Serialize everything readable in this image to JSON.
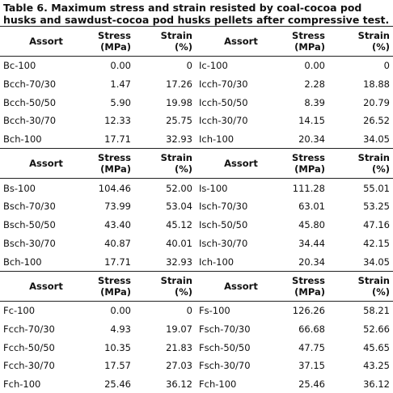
{
  "title": "Table 6. Maximum stress and strain resisted by coal-cocoa pod husks and sawdust-cocoa pod husks pellets after compressive test.",
  "table": {
    "blocks": [
      {
        "header": [
          "Assort",
          "Stress\n(MPa)",
          "Strain\n(%)",
          "Assort",
          "Stress\n(MPa)",
          "Strain\n(%)"
        ],
        "rows": [
          [
            "Bc-100",
            "0.00",
            "0",
            "Ic-100",
            "0.00",
            "0"
          ],
          [
            "Bcch-70/30",
            "1.47",
            "17.26",
            "Icch-70/30",
            "2.28",
            "18.88"
          ],
          [
            "Bcch-50/50",
            "5.90",
            "19.98",
            "Icch-50/50",
            "8.39",
            "20.79"
          ],
          [
            "Bcch-30/70",
            "12.33",
            "25.75",
            "Icch-30/70",
            "14.15",
            "26.52"
          ],
          [
            "Bch-100",
            "17.71",
            "32.93",
            "Ich-100",
            "20.34",
            "34.05"
          ]
        ]
      },
      {
        "header": [
          "Assort",
          "Stress\n(MPa)",
          "Strain\n(%)",
          "Assort",
          "Stress\n(MPa)",
          "Strain\n(%)"
        ],
        "rows": [
          [
            "Bs-100",
            "104.46",
            "52.00",
            "Is-100",
            "111.28",
            "55.01"
          ],
          [
            "Bsch-70/30",
            "73.99",
            "53.04",
            "Isch-70/30",
            "63.01",
            "53.25"
          ],
          [
            "Bsch-50/50",
            "43.40",
            "45.12",
            "Isch-50/50",
            "45.80",
            "47.16"
          ],
          [
            "Bsch-30/70",
            "40.87",
            "40.01",
            "Isch-30/70",
            "34.44",
            "42.15"
          ],
          [
            "Bch-100",
            "17.71",
            "32.93",
            "Ich-100",
            "20.34",
            "34.05"
          ]
        ]
      },
      {
        "header": [
          "Assort",
          "Stress\n(MPa)",
          "Strain\n(%)",
          "Assort",
          "Stress\n(MPa)",
          "Strain\n(%)"
        ],
        "rows": [
          [
            "Fc-100",
            "0.00",
            "0",
            "Fs-100",
            "126.26",
            "58.21"
          ],
          [
            "Fcch-70/30",
            "4.93",
            "19.07",
            "Fsch-70/30",
            "66.68",
            "52.66"
          ],
          [
            "Fcch-50/50",
            "10.35",
            "21.83",
            "Fsch-50/50",
            "47.75",
            "45.65"
          ],
          [
            "Fcch-30/70",
            "17.57",
            "27.03",
            "Fsch-30/70",
            "37.15",
            "43.25"
          ],
          [
            "Fch-100",
            "25.46",
            "36.12",
            "Fch-100",
            "25.46",
            "36.12"
          ]
        ]
      }
    ]
  }
}
